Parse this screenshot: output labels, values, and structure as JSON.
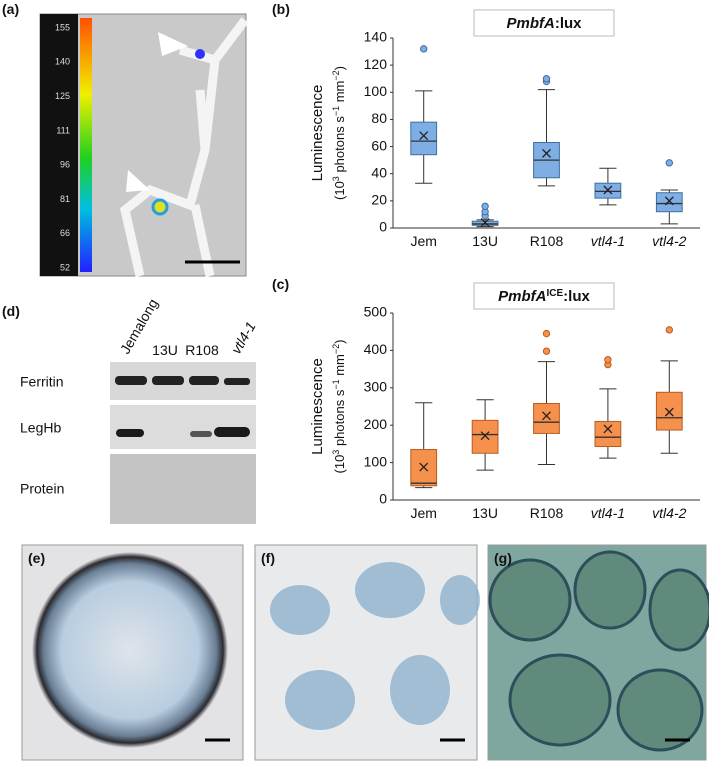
{
  "panels": {
    "a": "(a)",
    "b": "(b)",
    "c": "(c)",
    "d": "(d)",
    "e": "(e)",
    "f": "(f)",
    "g": "(g)"
  },
  "colorbar": {
    "ticks": [
      155,
      140,
      125,
      111,
      96,
      81,
      66,
      52
    ]
  },
  "blot": {
    "columns": [
      "Jemalong",
      "13U",
      "R108",
      "vtl4-1"
    ],
    "rows": [
      "Ferritin",
      "LegHb",
      "Protein"
    ]
  },
  "chart_data": [
    {
      "type": "box",
      "title_parts": [
        "PmbfA",
        ":lux"
      ],
      "y_label": "Luminescence",
      "y_units": [
        "(10",
        "3",
        " photons s",
        "−1",
        " mm",
        "−2",
        ")"
      ],
      "categories": [
        "Jem",
        "13U",
        "R108",
        "vtl4-1",
        "vtl4-2"
      ],
      "color": "#7eaee3",
      "stroke": "#3f6f9f",
      "ylim": [
        0,
        140
      ],
      "yticks": [
        0,
        20,
        40,
        60,
        80,
        100,
        120,
        140
      ],
      "boxes": [
        {
          "low": 33,
          "q1": 54,
          "median": 64,
          "q3": 78,
          "high": 101,
          "mean": 68,
          "outliers": [
            132
          ]
        },
        {
          "low": 1,
          "q1": 2,
          "median": 3,
          "q3": 5,
          "high": 6,
          "mean": 4,
          "outliers": [
            9,
            12,
            16
          ]
        },
        {
          "low": 31,
          "q1": 37,
          "median": 50,
          "q3": 63,
          "high": 102,
          "mean": 55,
          "outliers": [
            108,
            110
          ]
        },
        {
          "low": 17,
          "q1": 22,
          "median": 27,
          "q3": 33,
          "high": 44,
          "mean": 28,
          "outliers": []
        },
        {
          "low": 3,
          "q1": 12,
          "median": 18,
          "q3": 26,
          "high": 28,
          "mean": 20,
          "outliers": [
            48
          ]
        }
      ]
    },
    {
      "type": "box",
      "title_parts": [
        "PmbfA",
        "ICE",
        ":lux"
      ],
      "y_label": "Luminescence",
      "y_units": [
        "(10",
        "3",
        " photons s",
        "−1",
        " mm",
        "−2",
        ")"
      ],
      "categories": [
        "Jem",
        "13U",
        "R108",
        "vtl4-1",
        "vtl4-2"
      ],
      "color": "#f5914d",
      "stroke": "#b85c22",
      "ylim": [
        0,
        500
      ],
      "yticks": [
        0,
        100,
        200,
        300,
        400,
        500
      ],
      "boxes": [
        {
          "low": 33,
          "q1": 38,
          "median": 45,
          "q3": 135,
          "high": 260,
          "mean": 88,
          "outliers": []
        },
        {
          "low": 80,
          "q1": 125,
          "median": 175,
          "q3": 213,
          "high": 268,
          "mean": 172,
          "outliers": []
        },
        {
          "low": 95,
          "q1": 178,
          "median": 208,
          "q3": 258,
          "high": 370,
          "mean": 225,
          "outliers": [
            398,
            445
          ]
        },
        {
          "low": 112,
          "q1": 143,
          "median": 168,
          "q3": 210,
          "high": 297,
          "mean": 190,
          "outliers": [
            362,
            375
          ]
        },
        {
          "low": 125,
          "q1": 187,
          "median": 220,
          "q3": 288,
          "high": 372,
          "mean": 235,
          "outliers": [
            455
          ]
        }
      ]
    }
  ]
}
